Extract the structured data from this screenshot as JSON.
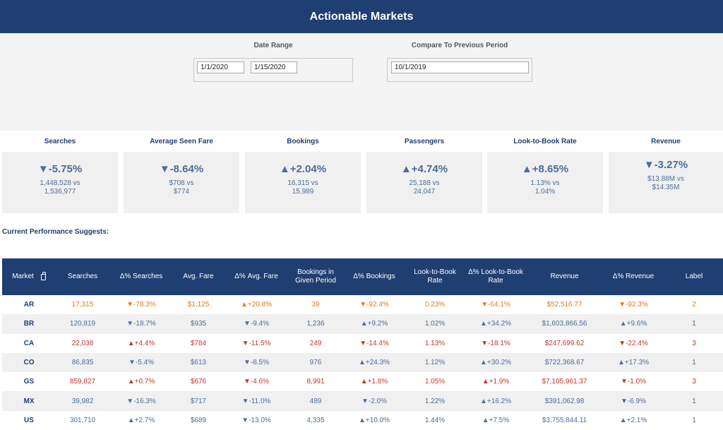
{
  "header": {
    "title": "Actionable Markets"
  },
  "filters": {
    "date_range_label": "Date Range",
    "date_start": "1/1/2020",
    "date_end": "1/15/2020",
    "compare_label": "Compare To Previous Period",
    "compare_date": "10/1/2019"
  },
  "kpis": [
    {
      "title": "Searches",
      "delta": "▼-5.75%",
      "current": "1,448,528 vs",
      "previous": "1,536,977"
    },
    {
      "title": "Average Seen Fare",
      "delta": "▼-8.64%",
      "current": "$708 vs",
      "previous": "$774"
    },
    {
      "title": "Bookings",
      "delta": "▲+2.04%",
      "current": "16,315 vs",
      "previous": "15,989"
    },
    {
      "title": "Passengers",
      "delta": "▲+4.74%",
      "current": "25,188  vs",
      "previous": "24,047"
    },
    {
      "title": "Look-to-Book Rate",
      "delta": "▲+8.65%",
      "current": "1.13% vs",
      "previous": "1.04%"
    },
    {
      "title": "Revenue",
      "delta": "▼-3.27%",
      "current": "$13.88M vs",
      "previous": "$14.35M"
    }
  ],
  "suggests_label": "Current Performance Suggests:",
  "table": {
    "headers": [
      "Market",
      "Searches",
      "Δ% Searches",
      "Avg. Fare",
      "Δ%  Avg. Fare",
      "Bookings in Given Period",
      "Δ% Bookings",
      "Look-to-Book Rate",
      "Δ% Look-to-Book Rate",
      "Revenue",
      "Δ% Revenue",
      "Label"
    ],
    "rows": [
      {
        "color": "#e07b1f",
        "cells": [
          "AR",
          "17,315",
          "▼-78.3%",
          "$1,125",
          "▲+20.8%",
          "39",
          "▼-92.4%",
          "0.23%",
          "▼-64.1%",
          "$52,516.77",
          "▼-92.3%",
          "2"
        ]
      },
      {
        "color": "#4a6d9c",
        "cells": [
          "BR",
          "120,819",
          "▼-18.7%",
          "$935",
          "▼-9.4%",
          "1,236",
          "▲+9.2%",
          "1.02%",
          "▲+34.2%",
          "$1,603,866.56",
          "▲+9.6%",
          "1"
        ]
      },
      {
        "color": "#c0392b",
        "cells": [
          "CA",
          "22,038",
          "▲+4.4%",
          "$784",
          "▼-11.5%",
          "249",
          "▼-14.4%",
          "1.13%",
          "▼-18.1%",
          "$247,699.62",
          "▼-22.4%",
          "3"
        ]
      },
      {
        "color": "#4a6d9c",
        "cells": [
          "CO",
          "86,835",
          "▼-5.4%",
          "$613",
          "▼-8.5%",
          "976",
          "▲+24.3%",
          "1.12%",
          "▲+30.2%",
          "$722,368.67",
          "▲+17.3%",
          "1"
        ]
      },
      {
        "color": "#c0392b",
        "cells": [
          "GS",
          "859,827",
          "▲+0.7%",
          "$676",
          "▼-4.6%",
          "8,991",
          "▲+1.8%",
          "1.05%",
          "▲+1.9%",
          "$7,105,961.37",
          "▼-1.0%",
          "3"
        ]
      },
      {
        "color": "#4a6d9c",
        "cells": [
          "MX",
          "39,982",
          "▼-16.3%",
          "$717",
          "▼-11.0%",
          "489",
          "▼-2.0%",
          "1.22%",
          "▲+16.2%",
          "$391,062.98",
          "▼-6.9%",
          "1"
        ]
      },
      {
        "color": "#4a6d9c",
        "cells": [
          "US",
          "301,710",
          "▲+2.7%",
          "$689",
          "▼-13.0%",
          "4,335",
          "▲+10.0%",
          "1.44%",
          "▲+7.5%",
          "$3,755,844.11",
          "▲+2.1%",
          "1"
        ]
      }
    ]
  }
}
